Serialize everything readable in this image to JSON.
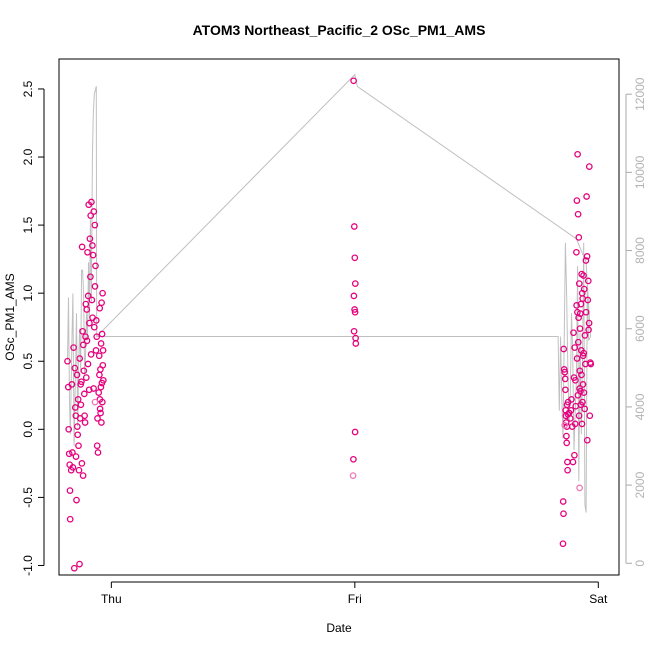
{
  "colors": {
    "points": "#e6007e",
    "points_faint": "#ee79b4",
    "line": "#c0c0c0",
    "right_axis": "#aaaaaa",
    "right_tick_text": "#b3b3b3"
  },
  "chart_data": {
    "type": "scatter",
    "title": "ATOM3 Northeast_Pacific_2 OSc_PM1_AMS",
    "xlabel": "Date",
    "ylabel": "OSc_PM1_AMS",
    "x_ticks": [
      {
        "label": "Thu",
        "value": 0.0
      },
      {
        "label": "Fri",
        "value": 1.0
      },
      {
        "label": "Sat",
        "value": 2.0
      }
    ],
    "xlim": [
      -0.215,
      2.085
    ],
    "ylim": [
      -1.07,
      2.72
    ],
    "y_ticks": [
      -1.0,
      -0.5,
      0.0,
      0.5,
      1.0,
      1.5,
      2.0,
      2.5
    ],
    "y2_ticks": [
      0,
      2000,
      4000,
      6000,
      8000,
      10000,
      12000
    ],
    "y2lim": [
      -300,
      12900
    ],
    "grid": false,
    "series": [
      {
        "kind": "points",
        "points": [
          [
            -0.18,
            0.5
          ],
          [
            -0.177,
            0.31
          ],
          [
            -0.175,
            0.0
          ],
          [
            -0.173,
            -0.18
          ],
          [
            -0.171,
            -0.26
          ],
          [
            -0.17,
            -0.45
          ],
          [
            -0.169,
            -0.66
          ],
          [
            -0.165,
            -0.3
          ],
          [
            -0.162,
            0.33
          ],
          [
            -0.16,
            -0.17
          ],
          [
            -0.158,
            -0.28
          ],
          [
            -0.155,
            0.6
          ],
          [
            -0.152,
            -1.02
          ],
          [
            -0.15,
            0.45
          ],
          [
            -0.148,
            0.16
          ],
          [
            -0.146,
            0.1
          ],
          [
            -0.145,
            -0.2
          ],
          [
            -0.143,
            -0.52
          ],
          [
            -0.141,
            0.4
          ],
          [
            -0.14,
            0.02
          ],
          [
            -0.138,
            -0.04
          ],
          [
            -0.136,
            0.22
          ],
          [
            -0.135,
            -0.12
          ],
          [
            -0.133,
            -0.3
          ],
          [
            -0.131,
            -0.99
          ],
          [
            -0.13,
            0.52
          ],
          [
            -0.128,
            0.08
          ],
          [
            -0.126,
            0.33
          ],
          [
            -0.125,
            0.18
          ],
          [
            -0.123,
            0.35
          ],
          [
            -0.121,
            -0.25
          ],
          [
            -0.12,
            1.34
          ],
          [
            -0.118,
            0.72
          ],
          [
            -0.116,
            -0.34
          ],
          [
            -0.115,
            0.62
          ],
          [
            -0.113,
            0.43
          ],
          [
            -0.111,
            0.26
          ],
          [
            -0.11,
            0.1
          ],
          [
            -0.108,
            0.05
          ],
          [
            -0.106,
            0.68
          ],
          [
            -0.105,
            0.92
          ],
          [
            -0.103,
            0.38
          ],
          [
            -0.101,
            0.88
          ],
          [
            -0.1,
            0.65
          ],
          [
            -0.098,
            1.3
          ],
          [
            -0.096,
            0.48
          ],
          [
            -0.095,
            0.98
          ],
          [
            -0.093,
            1.65
          ],
          [
            -0.091,
            0.29
          ],
          [
            -0.09,
            0.78
          ],
          [
            -0.088,
            1.4
          ],
          [
            -0.086,
            1.12
          ],
          [
            -0.085,
            1.57
          ],
          [
            -0.083,
            0.55
          ],
          [
            -0.082,
            1.67
          ],
          [
            -0.08,
            0.95
          ],
          [
            -0.078,
            1.35
          ],
          [
            -0.077,
            0.82
          ],
          [
            -0.075,
            1.28
          ],
          [
            -0.073,
            0.3
          ],
          [
            -0.072,
            1.6
          ],
          [
            -0.07,
            0.75
          ],
          [
            -0.068,
            1.5
          ],
          [
            -0.067,
            1.05
          ],
          [
            -0.065,
            1.2
          ],
          [
            -0.063,
            0.58
          ],
          [
            -0.062,
            0.8
          ],
          [
            -0.06,
            0.68
          ],
          [
            -0.058,
            -0.12
          ],
          [
            -0.057,
            0.08
          ],
          [
            -0.055,
            -0.17
          ],
          [
            -0.052,
            0.27
          ],
          [
            -0.05,
            0.54
          ],
          [
            -0.049,
            0.4
          ],
          [
            -0.048,
            0.89
          ],
          [
            -0.047,
            0.22
          ],
          [
            -0.046,
            0.15
          ],
          [
            -0.045,
            0.44
          ],
          [
            -0.044,
            0.12
          ],
          [
            -0.043,
            0.31
          ],
          [
            -0.042,
            0.63
          ],
          [
            -0.041,
            0.05
          ],
          [
            -0.04,
            0.93
          ],
          [
            -0.039,
            0.34
          ],
          [
            -0.038,
            0.7
          ],
          [
            -0.037,
            0.2
          ],
          [
            -0.036,
            1.0
          ],
          [
            -0.035,
            0.47
          ],
          [
            -0.034,
            0.58
          ],
          [
            -0.033,
            0.36
          ],
          [
            0.995,
            2.56
          ],
          [
            0.998,
            1.49
          ],
          [
            1.0,
            1.26
          ],
          [
            1.002,
            1.07
          ],
          [
            0.996,
            0.98
          ],
          [
            0.999,
            0.88
          ],
          [
            1.001,
            0.86
          ],
          [
            0.997,
            0.72
          ],
          [
            1.003,
            0.67
          ],
          [
            1.004,
            0.63
          ],
          [
            1.001,
            -0.02
          ],
          [
            0.994,
            -0.22
          ],
          [
            1.858,
            0.59
          ],
          [
            1.86,
            0.44
          ],
          [
            1.862,
            0.42
          ],
          [
            1.864,
            0.37
          ],
          [
            1.865,
            0.29
          ],
          [
            1.866,
            0.14
          ],
          [
            1.867,
            0.1
          ],
          [
            1.868,
            0.05
          ],
          [
            1.869,
            -0.05
          ],
          [
            1.87,
            -0.1
          ],
          [
            1.871,
            0.02
          ],
          [
            1.872,
            0.18
          ],
          [
            1.873,
            -0.24
          ],
          [
            1.874,
            -0.3
          ],
          [
            1.856,
            -0.53
          ],
          [
            1.857,
            -0.62
          ],
          [
            1.855,
            -0.84
          ],
          [
            1.875,
            0.11
          ],
          [
            1.876,
            0.2
          ],
          [
            1.88,
            0.12
          ],
          [
            1.885,
            0.08
          ],
          [
            1.888,
            0.14
          ],
          [
            1.89,
            0.22
          ],
          [
            1.893,
            0.02
          ],
          [
            1.896,
            -0.24
          ],
          [
            1.898,
            0.71
          ],
          [
            1.9,
            0.38
          ],
          [
            1.902,
            -0.19
          ],
          [
            1.905,
            0.04
          ],
          [
            1.907,
            0.17
          ],
          [
            1.91,
            1.3
          ],
          [
            1.912,
            1.68
          ],
          [
            1.914,
            0.86
          ],
          [
            1.915,
            2.02
          ],
          [
            1.917,
            1.58
          ],
          [
            1.919,
            0.82
          ],
          [
            1.92,
            1.41
          ],
          [
            1.922,
            1.07
          ],
          [
            1.924,
            0.43
          ],
          [
            1.925,
            0.74
          ],
          [
            1.927,
            0.28
          ],
          [
            1.929,
            0.92
          ],
          [
            1.93,
            0.58
          ],
          [
            1.932,
            1.14
          ],
          [
            1.934,
            1.0
          ],
          [
            1.935,
            0.2
          ],
          [
            1.937,
            0.33
          ],
          [
            1.939,
            1.13
          ],
          [
            1.94,
            0.56
          ],
          [
            1.942,
            1.03
          ],
          [
            1.944,
            0.15
          ],
          [
            1.945,
            0.69
          ],
          [
            1.947,
            0.48
          ],
          [
            1.949,
            1.24
          ],
          [
            1.95,
            0.86
          ],
          [
            1.952,
            1.71
          ],
          [
            1.954,
            1.27
          ],
          [
            1.955,
            -0.08
          ],
          [
            1.957,
            0.95
          ],
          [
            1.959,
            1.09
          ],
          [
            1.96,
            0.73
          ],
          [
            1.962,
            0.78
          ],
          [
            1.963,
            1.93
          ],
          [
            1.965,
            0.1
          ],
          [
            1.967,
            0.49
          ],
          [
            1.969,
            0.48
          ],
          [
            1.903,
            0.6
          ],
          [
            1.906,
            0.36
          ],
          [
            1.911,
            0.91
          ],
          [
            1.913,
            0.52
          ],
          [
            1.916,
            0.25
          ],
          [
            1.918,
            0.64
          ],
          [
            1.921,
            0.1
          ],
          [
            1.923,
            0.3
          ],
          [
            1.926,
            0.85
          ],
          [
            1.928,
            0.18
          ],
          [
            1.931,
            0.4
          ],
          [
            1.933,
            0.04
          ],
          [
            1.936,
            0.96
          ],
          [
            1.938,
            0.54
          ],
          [
            1.941,
            0.27
          ]
        ]
      },
      {
        "kind": "points_faint",
        "points": [
          [
            -0.067,
            0.2
          ],
          [
            0.993,
            -0.34
          ],
          [
            1.923,
            -0.43
          ],
          [
            1.862,
            0.03
          ]
        ]
      },
      {
        "kind": "line_right_axis",
        "points": [
          [
            -0.18,
            5200
          ],
          [
            -0.176,
            6800
          ],
          [
            -0.172,
            4100
          ],
          [
            -0.168,
            3300
          ],
          [
            -0.163,
            5400
          ],
          [
            -0.158,
            6900
          ],
          [
            -0.153,
            3000
          ],
          [
            -0.148,
            4600
          ],
          [
            -0.143,
            6400
          ],
          [
            -0.138,
            3500
          ],
          [
            -0.134,
            5200
          ],
          [
            -0.13,
            6000
          ],
          [
            -0.126,
            4900
          ],
          [
            -0.122,
            7500
          ],
          [
            -0.118,
            7500
          ],
          [
            -0.114,
            6900
          ],
          [
            -0.11,
            4800
          ],
          [
            -0.106,
            5300
          ],
          [
            -0.102,
            6400
          ],
          [
            -0.098,
            5700
          ],
          [
            -0.094,
            7700
          ],
          [
            -0.09,
            6300
          ],
          [
            -0.086,
            8800
          ],
          [
            -0.082,
            6700
          ],
          [
            -0.078,
            10400
          ],
          [
            -0.074,
            11500
          ],
          [
            -0.07,
            12000
          ],
          [
            -0.066,
            12100
          ],
          [
            -0.062,
            12200
          ],
          [
            -0.06,
            5800
          ],
          [
            1.0,
            12500
          ],
          [
            1.01,
            12200
          ],
          [
            1.91,
            8300
          ],
          [
            1.95,
            7700
          ],
          [
            1.968,
            5800
          ],
          [
            1.96,
            5700
          ],
          [
            1.955,
            7200
          ],
          [
            1.95,
            1300
          ],
          [
            1.945,
            1500
          ],
          [
            1.94,
            8200
          ],
          [
            1.935,
            5200
          ],
          [
            1.93,
            3300
          ],
          [
            1.925,
            5900
          ],
          [
            1.92,
            2100
          ],
          [
            1.915,
            7600
          ],
          [
            1.91,
            4700
          ],
          [
            1.905,
            3900
          ],
          [
            1.9,
            2900
          ],
          [
            1.895,
            5400
          ],
          [
            1.89,
            6400
          ],
          [
            1.885,
            4300
          ],
          [
            1.88,
            3600
          ],
          [
            1.875,
            4900
          ],
          [
            1.87,
            6800
          ],
          [
            1.865,
            8200
          ],
          [
            1.86,
            5700
          ],
          [
            1.855,
            3200
          ],
          [
            1.85,
            4200
          ],
          [
            1.845,
            5800
          ],
          [
            1.84,
            3900
          ],
          [
            1.835,
            5800
          ],
          [
            -0.06,
            5800
          ]
        ]
      }
    ]
  }
}
